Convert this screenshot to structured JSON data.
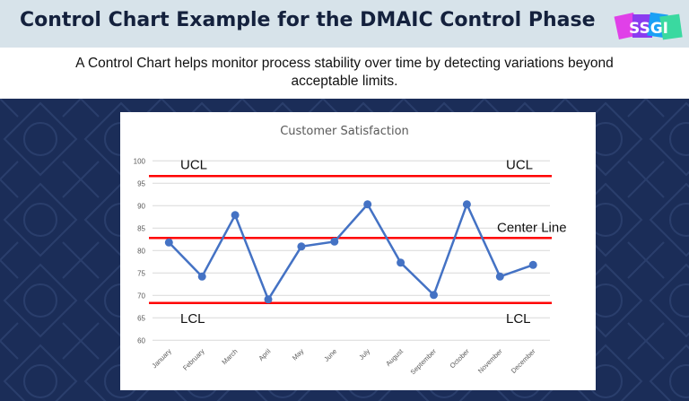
{
  "header": {
    "title": "Control Chart Example for the DMAIC Control Phase",
    "logo_text": "SSGI"
  },
  "subtitle": "A Control Chart helps monitor process stability over time by detecting variations beyond acceptable limits.",
  "colors": {
    "series": "#4472c4",
    "limits": "#ff0000",
    "background": "#1b2d58",
    "header": "#d7e3ea"
  },
  "chart_data": {
    "type": "line",
    "title": "Customer Satisfaction",
    "categories": [
      "January",
      "February",
      "March",
      "April",
      "May",
      "June",
      "July",
      "August",
      "September",
      "October",
      "November",
      "December"
    ],
    "values": [
      81.8,
      74.2,
      87.9,
      69.1,
      80.9,
      82.0,
      90.3,
      77.3,
      70.1,
      90.3,
      74.2,
      76.8
    ],
    "ylim": [
      60,
      100
    ],
    "yticks": [
      60,
      65,
      70,
      75,
      80,
      85,
      90,
      95,
      100
    ],
    "grid": true,
    "control_lines": [
      {
        "label_left": "UCL",
        "label_right": "UCL",
        "value": 96.6
      },
      {
        "label_left": "",
        "label_right": "Center Line",
        "value": 82.8
      },
      {
        "label_left": "LCL",
        "label_right": "LCL",
        "value": 68.3
      }
    ]
  }
}
